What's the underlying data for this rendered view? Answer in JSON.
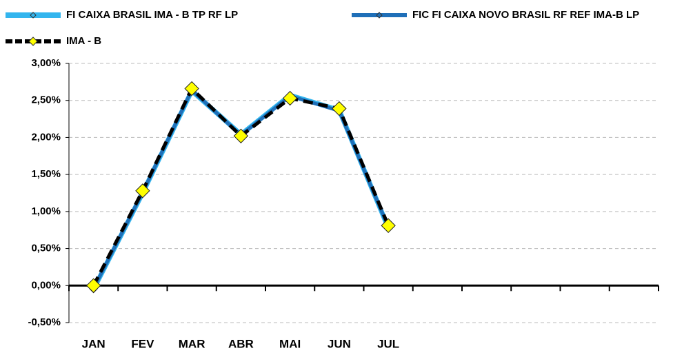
{
  "chart_data": {
    "type": "line",
    "categories": [
      "JAN",
      "FEV",
      "MAR",
      "ABR",
      "MAI",
      "JUN",
      "JUL",
      null,
      null,
      null,
      null,
      null
    ],
    "series": [
      {
        "name": "FI CAIXA BRASIL IMA - B TP RF LP",
        "color": "#33b5ee",
        "width": 7,
        "dashed": false,
        "marker_color": "#33b5ee",
        "marker_size": 5,
        "values": [
          -0.05,
          1.25,
          2.63,
          2.04,
          2.57,
          2.37,
          0.78,
          null,
          null,
          null,
          null,
          null
        ]
      },
      {
        "name": "FIC FI CAIXA NOVO BRASIL RF REF IMA-B LP",
        "color": "#1f6fb8",
        "width": 5,
        "dashed": false,
        "marker_color": "#1f6fb8",
        "marker_size": 5,
        "values": [
          -0.04,
          1.26,
          2.64,
          2.03,
          2.56,
          2.36,
          0.79,
          null,
          null,
          null,
          null,
          null
        ]
      },
      {
        "name": "IMA - B",
        "color": "#000000",
        "width": 5,
        "dashed": true,
        "marker_color": "#ffff00",
        "marker_size": 10,
        "values": [
          0.0,
          1.28,
          2.66,
          2.02,
          2.53,
          2.39,
          0.81,
          null,
          null,
          null,
          null,
          null
        ]
      }
    ],
    "ylim": [
      -0.5,
      3.0
    ],
    "yticks": [
      {
        "value": -0.5,
        "label": "-0,50%"
      },
      {
        "value": 0,
        "label": "0,00%"
      },
      {
        "value": 0.5,
        "label": "0,50%"
      },
      {
        "value": 1.0,
        "label": "1,00%"
      },
      {
        "value": 1.5,
        "label": "1,50%"
      },
      {
        "value": 2.0,
        "label": "2,00%"
      },
      {
        "value": 2.5,
        "label": "2,50%"
      },
      {
        "value": 3.0,
        "label": "3,00%"
      }
    ],
    "grid": true,
    "legend": "top"
  }
}
